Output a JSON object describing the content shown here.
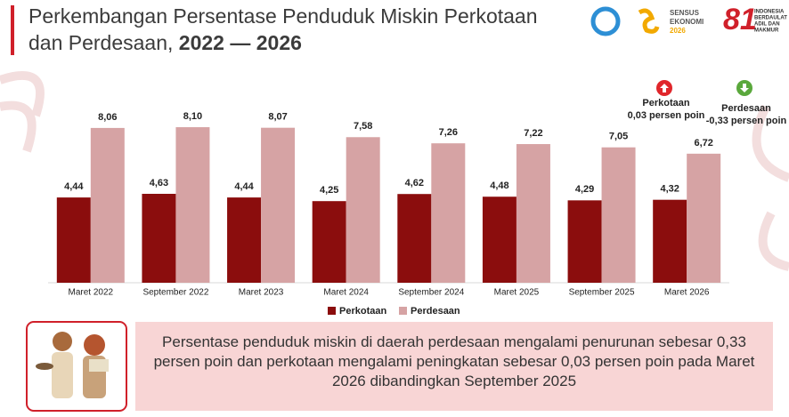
{
  "chart_data": {
    "type": "bar",
    "title_lines": [
      "Perkembangan Persentase Penduduk Miskin Perkotaan",
      "dan Perdesaan,",
      "2022 — 2026"
    ],
    "categories": [
      "Maret 2022",
      "September 2022",
      "Maret 2023",
      "Maret 2024",
      "September 2024",
      "Maret 2025",
      "September 2025",
      "Maret 2026"
    ],
    "series": [
      {
        "name": "Perkotaan",
        "color": "#8b0d0d",
        "values": [
          4.44,
          4.63,
          4.44,
          4.25,
          4.62,
          4.48,
          4.29,
          4.32
        ],
        "value_labels": [
          "4,44",
          "4,63",
          "4,44",
          "4,25",
          "4,62",
          "4,48",
          "4,29",
          "4,32"
        ]
      },
      {
        "name": "Perdesaan",
        "color": "#d6a3a4",
        "values": [
          8.06,
          8.1,
          8.07,
          7.58,
          7.26,
          7.22,
          7.05,
          6.72
        ],
        "value_labels": [
          "8,06",
          "8,10",
          "8,07",
          "7,58",
          "7,26",
          "7,22",
          "7,05",
          "6,72"
        ]
      }
    ],
    "ylim": [
      0,
      10
    ],
    "legend": "bottom",
    "annotations": [
      {
        "label": "Perkotaan",
        "text": "0,03 persen poin",
        "direction": "up",
        "color": "#e0262b"
      },
      {
        "label": "Perdesaan",
        "text": "-0,33 persen poin",
        "direction": "down",
        "color": "#5aa83c"
      }
    ]
  },
  "logos": {
    "sensus": [
      "SENSUS",
      "EKONOMI",
      "2026"
    ],
    "anniversary": "81",
    "motto": [
      "INDONESIA",
      "BERDAULAT",
      "ADIL DAN",
      "MAKMUR"
    ]
  },
  "summary": "Persentase penduduk miskin di daerah perdesaan mengalami penurunan sebesar 0,33 persen poin dan perkotaan mengalami peningkatan sebesar 0,03 persen poin pada Maret 2026 dibandingkan September 2025"
}
